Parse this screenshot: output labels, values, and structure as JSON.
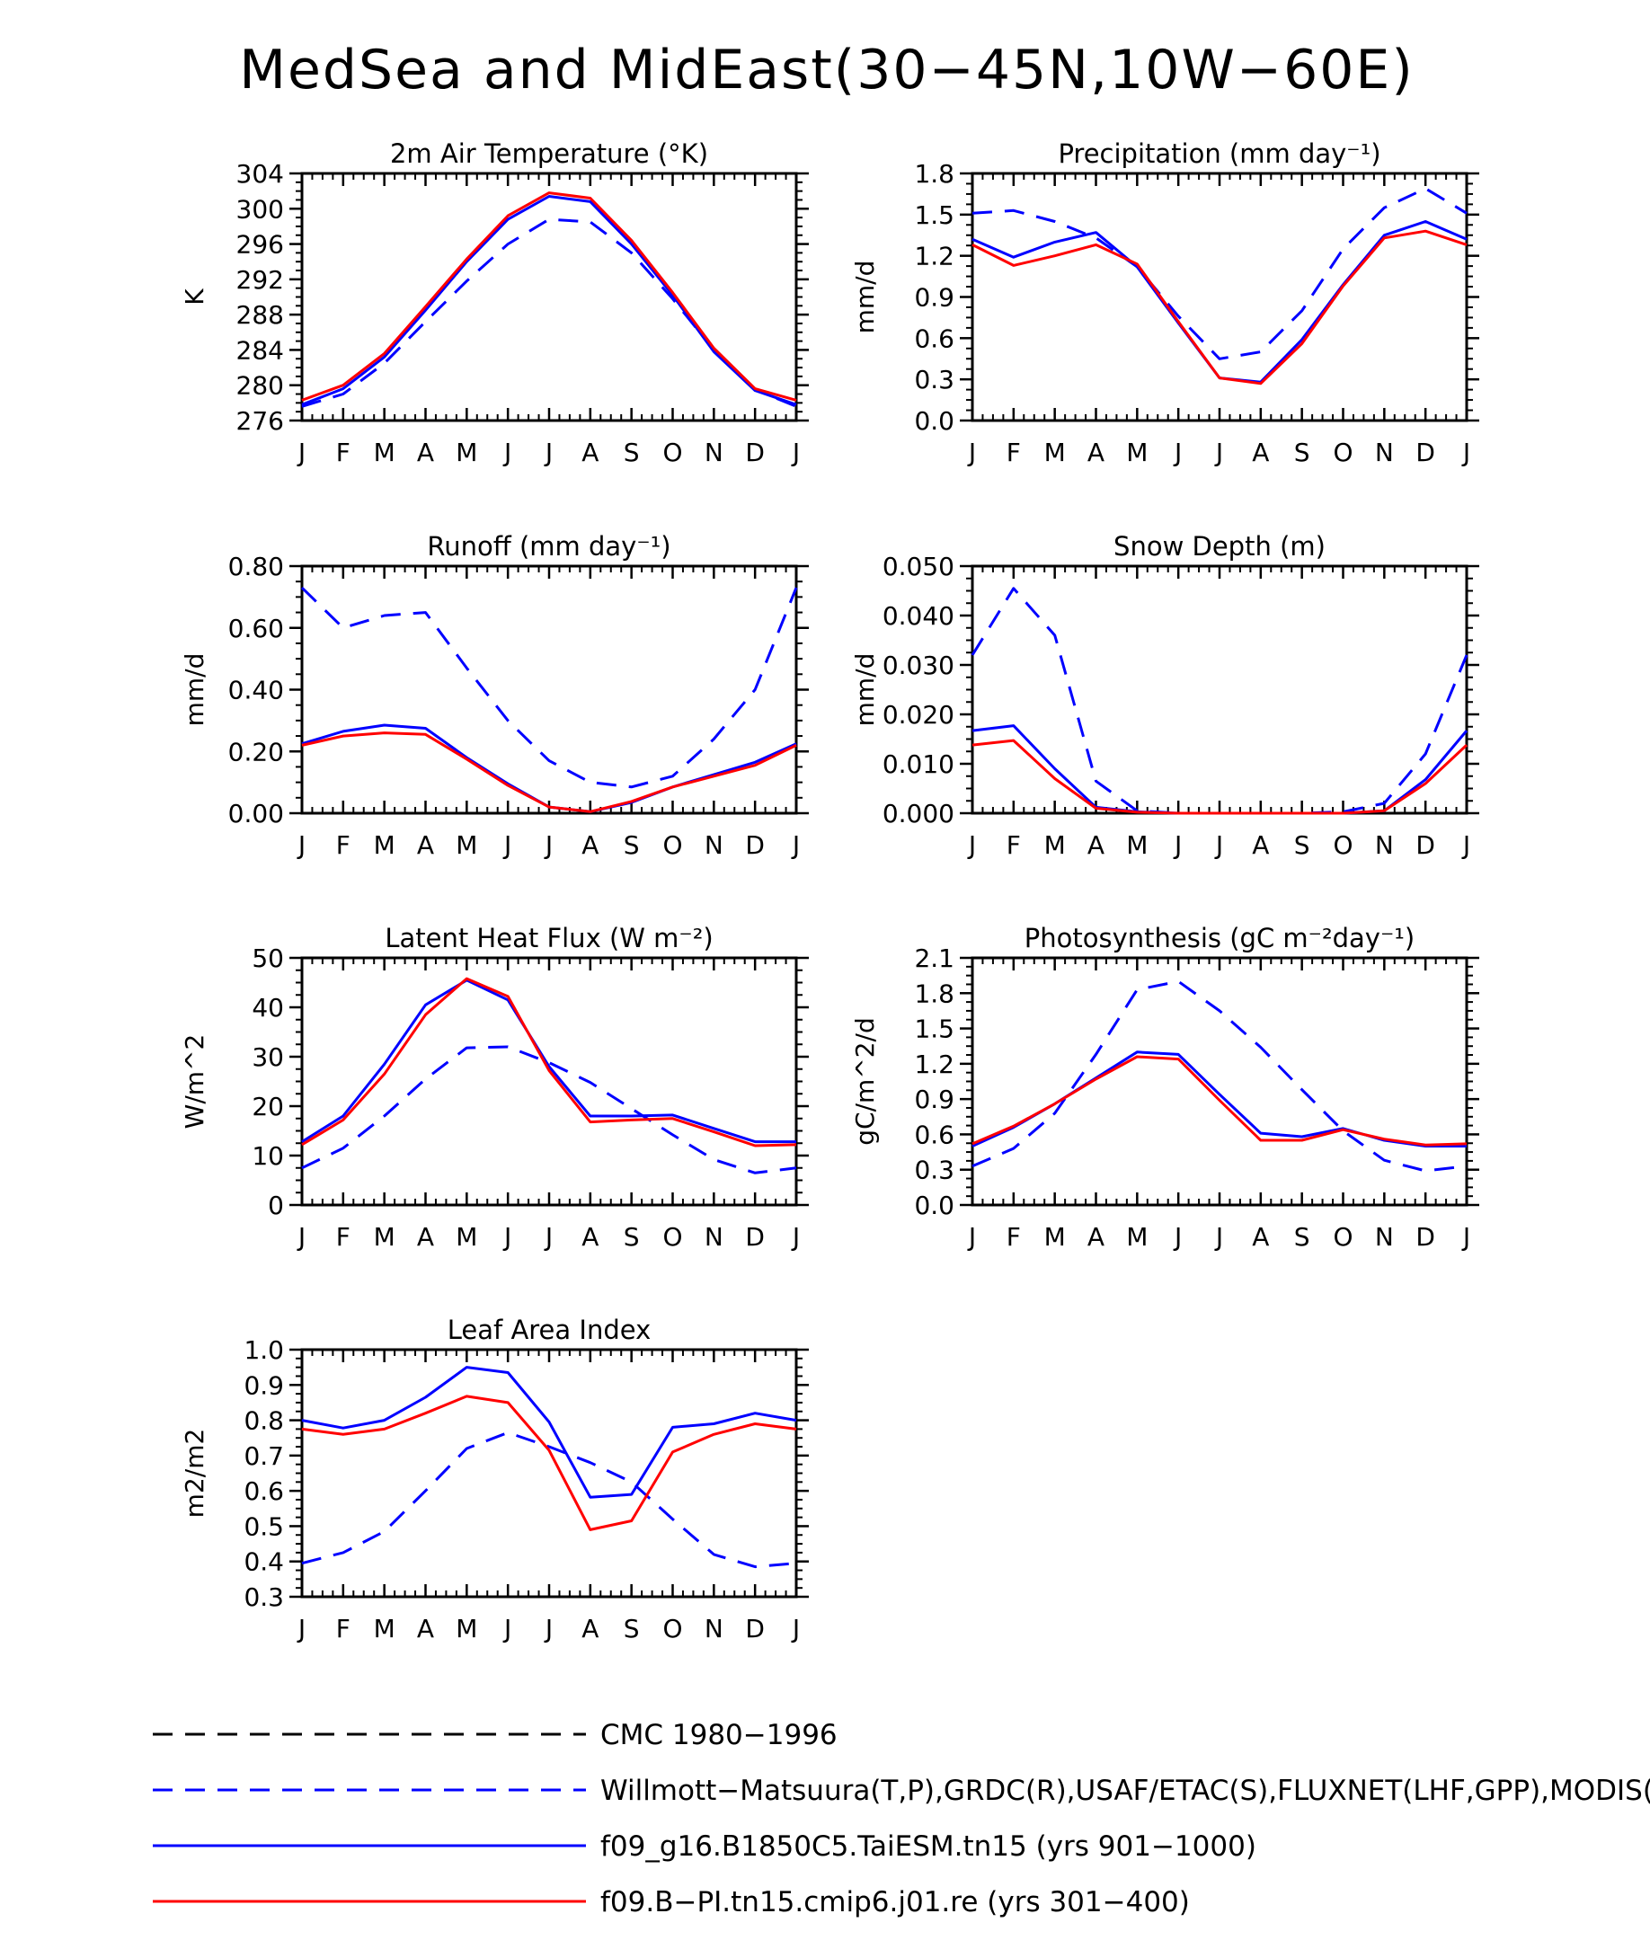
{
  "page": {
    "title": "MedSea and MidEast(30−45N,10W−60E)"
  },
  "months": [
    "J",
    "F",
    "M",
    "A",
    "M",
    "J",
    "J",
    "A",
    "S",
    "O",
    "N",
    "D",
    "J"
  ],
  "colors": {
    "obs": "#0000ff",
    "case1": "#0000ff",
    "case2": "#ff0000",
    "cmc": "#000000"
  },
  "legend": [
    {
      "label": "CMC 1980−1996",
      "color": "#000000",
      "dash": "dashed"
    },
    {
      "label": "Willmott−Matsuura(T,P),GRDC(R),USAF/ETAC(S),FLUXNET(LHF,GPP),MODIS(L",
      "color": "#0000ff",
      "dash": "dashed"
    },
    {
      "label": "f09_g16.B1850C5.TaiESM.tn15 (yrs 901−1000)",
      "color": "#0000ff",
      "dash": "solid"
    },
    {
      "label": "f09.B−PI.tn15.cmip6.j01.re (yrs 301−400)",
      "color": "#ff0000",
      "dash": "solid"
    }
  ],
  "chart_data": [
    {
      "type": "line",
      "title": "2m Air Temperature (°K)",
      "ylabel": "K",
      "ylim": [
        276,
        304
      ],
      "yticks": [
        "276",
        "280",
        "284",
        "288",
        "292",
        "296",
        "300",
        "304"
      ],
      "x": [
        "J",
        "F",
        "M",
        "A",
        "M",
        "J",
        "J",
        "A",
        "S",
        "O",
        "N",
        "D",
        "J"
      ],
      "series": [
        {
          "style": "dashed-blue",
          "values": [
            277.6,
            279.0,
            282.5,
            287.2,
            291.8,
            296.0,
            298.8,
            298.5,
            295.0,
            289.8,
            284.0,
            279.5,
            277.6
          ]
        },
        {
          "style": "solid-blue",
          "values": [
            277.8,
            279.6,
            283.2,
            288.5,
            294.0,
            298.8,
            301.4,
            300.8,
            296.0,
            290.2,
            283.8,
            279.4,
            277.8
          ]
        },
        {
          "style": "solid-red",
          "values": [
            278.3,
            280.0,
            283.6,
            288.9,
            294.3,
            299.2,
            301.8,
            301.2,
            296.4,
            290.5,
            284.2,
            279.6,
            278.3
          ]
        }
      ]
    },
    {
      "type": "line",
      "title": "Precipitation (mm day⁻¹)",
      "ylabel": "mm/d",
      "ylim": [
        0.0,
        1.8
      ],
      "yticks": [
        "0.0",
        "0.3",
        "0.6",
        "0.9",
        "1.2",
        "1.5",
        "1.8"
      ],
      "x": [
        "J",
        "F",
        "M",
        "A",
        "M",
        "J",
        "J",
        "A",
        "S",
        "O",
        "N",
        "D",
        "J"
      ],
      "series": [
        {
          "style": "dashed-blue",
          "values": [
            1.51,
            1.53,
            1.45,
            1.33,
            1.12,
            0.76,
            0.45,
            0.5,
            0.8,
            1.25,
            1.55,
            1.69,
            1.51
          ]
        },
        {
          "style": "solid-blue",
          "values": [
            1.32,
            1.19,
            1.3,
            1.37,
            1.12,
            0.71,
            0.31,
            0.28,
            0.59,
            0.99,
            1.35,
            1.45,
            1.32
          ]
        },
        {
          "style": "solid-red",
          "values": [
            1.28,
            1.13,
            1.2,
            1.28,
            1.14,
            0.72,
            0.31,
            0.27,
            0.56,
            0.98,
            1.33,
            1.38,
            1.28
          ]
        }
      ]
    },
    {
      "type": "line",
      "title": "Runoff (mm day⁻¹)",
      "ylabel": "mm/d",
      "ylim": [
        0.0,
        0.8
      ],
      "yticks": [
        "0.00",
        "0.20",
        "0.40",
        "0.60",
        "0.80"
      ],
      "x": [
        "J",
        "F",
        "M",
        "A",
        "M",
        "J",
        "J",
        "A",
        "S",
        "O",
        "N",
        "D",
        "J"
      ],
      "series": [
        {
          "style": "dashed-blue",
          "values": [
            0.73,
            0.6,
            0.64,
            0.65,
            0.47,
            0.3,
            0.17,
            0.1,
            0.085,
            0.12,
            0.24,
            0.4,
            0.73
          ]
        },
        {
          "style": "solid-blue",
          "values": [
            0.225,
            0.265,
            0.285,
            0.275,
            0.18,
            0.095,
            0.02,
            0.005,
            0.035,
            0.085,
            0.125,
            0.165,
            0.225
          ]
        },
        {
          "style": "solid-red",
          "values": [
            0.22,
            0.25,
            0.26,
            0.255,
            0.175,
            0.09,
            0.02,
            0.005,
            0.038,
            0.085,
            0.12,
            0.155,
            0.22
          ]
        }
      ]
    },
    {
      "type": "line",
      "title": "Snow Depth (m)",
      "ylabel": "mm/d",
      "ylim": [
        0.0,
        0.05
      ],
      "yticks": [
        "0.000",
        "0.010",
        "0.020",
        "0.030",
        "0.040",
        "0.050"
      ],
      "x": [
        "J",
        "F",
        "M",
        "A",
        "M",
        "J",
        "J",
        "A",
        "S",
        "O",
        "N",
        "D",
        "J"
      ],
      "series": [
        {
          "style": "dashed-black",
          "values": [
            0,
            0,
            0,
            0,
            0,
            0,
            0,
            0,
            0,
            0,
            0,
            0,
            0
          ]
        },
        {
          "style": "dashed-blue",
          "values": [
            0.032,
            0.0455,
            0.036,
            0.0065,
            0.0005,
            0,
            0,
            0,
            0,
            0.0003,
            0.002,
            0.012,
            0.032
          ]
        },
        {
          "style": "solid-blue",
          "values": [
            0.0167,
            0.0177,
            0.009,
            0.0012,
            0.0003,
            0,
            0,
            0,
            0,
            0,
            0.0005,
            0.0068,
            0.0167
          ]
        },
        {
          "style": "solid-red",
          "values": [
            0.0138,
            0.0147,
            0.007,
            0.001,
            0.0002,
            0,
            0,
            0,
            0,
            0,
            0.0005,
            0.006,
            0.0138
          ]
        }
      ]
    },
    {
      "type": "line",
      "title": "Latent Heat Flux (W m⁻²)",
      "ylabel": "W/m^2",
      "ylim": [
        0,
        50
      ],
      "yticks": [
        "0",
        "10",
        "20",
        "30",
        "40",
        "50"
      ],
      "x": [
        "J",
        "F",
        "M",
        "A",
        "M",
        "J",
        "J",
        "A",
        "S",
        "O",
        "N",
        "D",
        "J"
      ],
      "series": [
        {
          "style": "dashed-blue",
          "values": [
            7.5,
            11.5,
            18,
            25.5,
            31.8,
            32,
            28.8,
            24.8,
            19.5,
            14.2,
            9.2,
            6.5,
            7.5
          ]
        },
        {
          "style": "solid-blue",
          "values": [
            12.8,
            18,
            28.5,
            40.5,
            45.5,
            41.5,
            28,
            18,
            18,
            18.2,
            15.5,
            12.8,
            12.8
          ]
        },
        {
          "style": "solid-red",
          "values": [
            12.2,
            17.2,
            26.5,
            38.5,
            45.8,
            42.2,
            27.2,
            16.8,
            17.2,
            17.5,
            14.8,
            12,
            12.2
          ]
        }
      ]
    },
    {
      "type": "line",
      "title": "Photosynthesis (gC m⁻²day⁻¹)",
      "ylabel": "gC/m^2/d",
      "ylim": [
        0.0,
        2.1
      ],
      "yticks": [
        "0.0",
        "0.3",
        "0.6",
        "0.9",
        "1.2",
        "1.5",
        "1.8",
        "2.1"
      ],
      "x": [
        "J",
        "F",
        "M",
        "A",
        "M",
        "J",
        "J",
        "A",
        "S",
        "O",
        "N",
        "D",
        "J"
      ],
      "series": [
        {
          "style": "dashed-blue",
          "values": [
            0.33,
            0.48,
            0.78,
            1.28,
            1.83,
            1.9,
            1.65,
            1.34,
            0.98,
            0.63,
            0.38,
            0.29,
            0.33
          ]
        },
        {
          "style": "solid-blue",
          "values": [
            0.5,
            0.66,
            0.86,
            1.08,
            1.3,
            1.28,
            0.94,
            0.61,
            0.58,
            0.65,
            0.55,
            0.5,
            0.5
          ]
        },
        {
          "style": "solid-red",
          "values": [
            0.52,
            0.67,
            0.86,
            1.07,
            1.26,
            1.24,
            0.89,
            0.55,
            0.55,
            0.64,
            0.56,
            0.51,
            0.52
          ]
        }
      ]
    },
    {
      "type": "line",
      "title": "Leaf Area Index",
      "ylabel": "m2/m2",
      "ylim": [
        0.3,
        1.0
      ],
      "yticks": [
        "0.3",
        "0.4",
        "0.5",
        "0.6",
        "0.7",
        "0.8",
        "0.9",
        "1.0"
      ],
      "x": [
        "J",
        "F",
        "M",
        "A",
        "M",
        "J",
        "J",
        "A",
        "S",
        "O",
        "N",
        "D",
        "J"
      ],
      "series": [
        {
          "style": "dashed-blue",
          "values": [
            0.395,
            0.425,
            0.485,
            0.6,
            0.72,
            0.765,
            0.725,
            0.68,
            0.625,
            0.52,
            0.42,
            0.385,
            0.395
          ]
        },
        {
          "style": "solid-blue",
          "values": [
            0.8,
            0.778,
            0.8,
            0.865,
            0.95,
            0.935,
            0.795,
            0.582,
            0.59,
            0.78,
            0.79,
            0.82,
            0.8
          ]
        },
        {
          "style": "solid-red",
          "values": [
            0.775,
            0.76,
            0.775,
            0.82,
            0.868,
            0.85,
            0.715,
            0.49,
            0.515,
            0.71,
            0.76,
            0.79,
            0.775
          ]
        }
      ]
    }
  ]
}
